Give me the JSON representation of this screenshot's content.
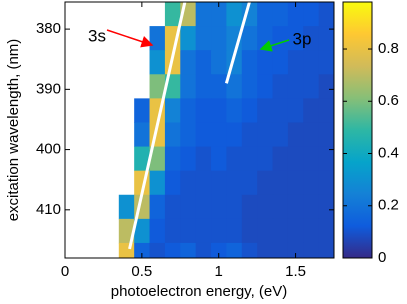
{
  "chart_data": {
    "type": "heatmap",
    "xlabel": "photoelectron energy, (eV)",
    "ylabel": "excitation wavelength, (nm)",
    "xlim": [
      0,
      1.75
    ],
    "xticks": [
      0,
      0.5,
      1,
      1.5
    ],
    "ylim": [
      418,
      375.5
    ],
    "yticks": [
      380,
      390,
      400,
      410
    ],
    "x_edges": [
      0.35,
      0.45,
      0.55,
      0.65,
      0.75,
      0.85,
      0.95,
      1.05,
      1.15,
      1.25,
      1.35,
      1.45,
      1.55,
      1.65,
      1.75
    ],
    "y_edges": [
      375.5,
      379.5,
      383.5,
      387.5,
      391.5,
      395.5,
      399.5,
      403.5,
      407.5,
      411.5,
      415.5,
      418
    ],
    "z": [
      [
        null,
        null,
        null,
        0.5,
        0.7,
        0.2,
        0.2,
        0.3,
        0.25,
        0.15,
        0.15,
        0.12,
        0.12,
        0.1
      ],
      [
        null,
        null,
        0.2,
        0.8,
        0.3,
        0.2,
        0.2,
        0.25,
        0.2,
        0.15,
        0.12,
        0.12,
        0.1,
        0.1
      ],
      [
        null,
        null,
        0.3,
        0.8,
        0.2,
        0.15,
        0.2,
        0.25,
        0.15,
        0.12,
        0.12,
        0.1,
        0.1,
        0.1
      ],
      [
        null,
        null,
        0.6,
        0.5,
        0.2,
        0.15,
        0.15,
        0.2,
        0.15,
        0.12,
        0.1,
        0.1,
        0.1,
        0.08
      ],
      [
        null,
        0.15,
        0.8,
        0.25,
        0.15,
        0.12,
        0.12,
        0.15,
        0.12,
        0.1,
        0.1,
        0.1,
        0.08,
        0.08
      ],
      [
        null,
        0.2,
        0.8,
        0.2,
        0.15,
        0.12,
        0.12,
        0.12,
        0.1,
        0.1,
        0.1,
        0.08,
        0.08,
        0.08
      ],
      [
        null,
        0.45,
        0.6,
        0.15,
        0.12,
        0.1,
        0.12,
        0.1,
        0.1,
        0.1,
        0.08,
        0.08,
        0.08,
        0.08
      ],
      [
        null,
        0.8,
        0.3,
        0.12,
        0.1,
        0.1,
        0.1,
        0.1,
        0.1,
        0.08,
        0.08,
        0.08,
        0.08,
        0.08
      ],
      [
        0.3,
        0.7,
        0.15,
        0.1,
        0.1,
        0.1,
        0.1,
        0.1,
        0.08,
        0.08,
        0.08,
        0.08,
        0.08,
        0.08
      ],
      [
        0.7,
        0.3,
        0.12,
        0.1,
        0.1,
        0.1,
        0.1,
        0.1,
        0.08,
        0.08,
        0.08,
        0.08,
        0.08,
        0.08
      ],
      [
        0.8,
        0.15,
        0.1,
        0.12,
        0.15,
        0.1,
        0.12,
        0.15,
        0.1,
        0.08,
        0.08,
        0.08,
        0.08,
        0.08
      ]
    ],
    "colormap": [
      "#352a87",
      "#0f5cdd",
      "#1481d6",
      "#06a4ca",
      "#2eb7a4",
      "#87bf77",
      "#d1bb59",
      "#fec832",
      "#f9fb0e"
    ],
    "clim": [
      0,
      0.98
    ],
    "cticks": [
      0,
      0.2,
      0.4,
      0.6,
      0.8
    ],
    "lines": [
      {
        "x": [
          0.42,
          0.78
        ],
        "y": [
          416.5,
          375.5
        ],
        "color": "#ffffff"
      },
      {
        "x": [
          1.05,
          1.2
        ],
        "y": [
          389,
          375.5
        ],
        "color": "#ffffff"
      }
    ],
    "annotations": [
      {
        "text": "3s",
        "color": "#ff0000"
      },
      {
        "text": "3p",
        "color": "#00cc00"
      }
    ]
  }
}
